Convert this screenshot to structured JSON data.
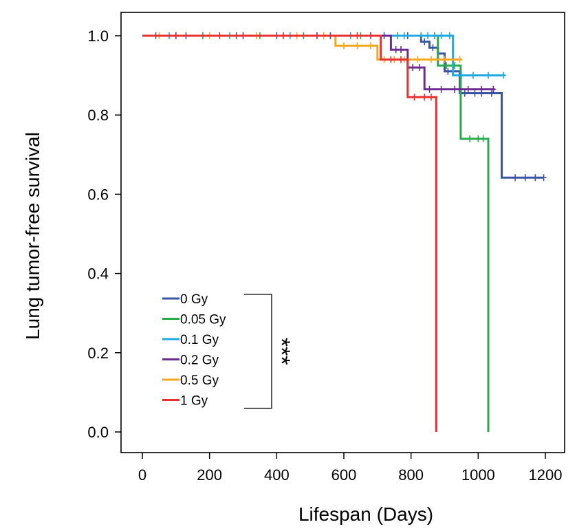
{
  "chart_data": {
    "type": "line",
    "subtype": "kaplan-meier-step",
    "xlabel": "Lifespan (Days)",
    "ylabel": "Lung tumor-free survival",
    "xlim": [
      -50,
      1220
    ],
    "ylim": [
      -0.05,
      1.07
    ],
    "x_ticks": [
      "0",
      "200",
      "400",
      "600",
      "800",
      "1000",
      "1200"
    ],
    "x_tick_values": [
      0,
      200,
      400,
      600,
      800,
      1000,
      1200
    ],
    "y_ticks": [
      "0.0",
      "0.2",
      "0.4",
      "0.6",
      "0.8",
      "1.0"
    ],
    "y_tick_values": [
      0.0,
      0.2,
      0.4,
      0.6,
      0.8,
      1.0
    ],
    "grid": false,
    "legend_position": "lower-left",
    "significance": "***",
    "series": [
      {
        "name": "0 Gy",
        "color": "#3a55a4",
        "steps": [
          [
            0,
            1.0
          ],
          [
            830,
            1.0
          ],
          [
            830,
            0.985
          ],
          [
            855,
            0.985
          ],
          [
            855,
            0.97
          ],
          [
            880,
            0.97
          ],
          [
            880,
            0.955
          ],
          [
            900,
            0.955
          ],
          [
            900,
            0.91
          ],
          [
            945,
            0.91
          ],
          [
            945,
            0.855
          ],
          [
            1070,
            0.855
          ],
          [
            1070,
            0.642
          ],
          [
            1195,
            0.642
          ]
        ],
        "censored": [
          [
            40,
            1.0
          ],
          [
            130,
            1.0
          ],
          [
            280,
            1.0
          ],
          [
            400,
            1.0
          ],
          [
            560,
            1.0
          ],
          [
            720,
            1.0
          ],
          [
            790,
            1.0
          ],
          [
            840,
            0.985
          ],
          [
            865,
            0.97
          ],
          [
            910,
            0.91
          ],
          [
            960,
            0.855
          ],
          [
            990,
            0.855
          ],
          [
            1010,
            0.855
          ],
          [
            1040,
            0.855
          ],
          [
            1110,
            0.642
          ],
          [
            1140,
            0.642
          ],
          [
            1170,
            0.642
          ],
          [
            1195,
            0.642
          ]
        ]
      },
      {
        "name": "0.05 Gy",
        "color": "#2aab4a",
        "steps": [
          [
            0,
            1.0
          ],
          [
            880,
            1.0
          ],
          [
            880,
            0.925
          ],
          [
            948,
            0.925
          ],
          [
            948,
            0.74
          ],
          [
            1030,
            0.74
          ],
          [
            1030,
            0.0
          ]
        ],
        "censored": [
          [
            180,
            1.0
          ],
          [
            350,
            1.0
          ],
          [
            480,
            1.0
          ],
          [
            650,
            1.0
          ],
          [
            760,
            1.0
          ],
          [
            830,
            1.0
          ],
          [
            870,
            1.0
          ],
          [
            905,
            0.925
          ],
          [
            930,
            0.925
          ],
          [
            975,
            0.74
          ],
          [
            1000,
            0.74
          ],
          [
            1015,
            0.74
          ]
        ]
      },
      {
        "name": "0.1 Gy",
        "color": "#1fa9e1",
        "steps": [
          [
            0,
            1.0
          ],
          [
            925,
            1.0
          ],
          [
            925,
            0.9
          ],
          [
            1080,
            0.9
          ]
        ],
        "censored": [
          [
            80,
            1.0
          ],
          [
            260,
            1.0
          ],
          [
            440,
            1.0
          ],
          [
            620,
            1.0
          ],
          [
            780,
            1.0
          ],
          [
            850,
            1.0
          ],
          [
            890,
            1.0
          ],
          [
            915,
            1.0
          ],
          [
            950,
            0.9
          ],
          [
            985,
            0.9
          ],
          [
            1030,
            0.9
          ],
          [
            1075,
            0.9
          ]
        ]
      },
      {
        "name": "0.2 Gy",
        "color": "#6a2d8f",
        "steps": [
          [
            0,
            1.0
          ],
          [
            740,
            1.0
          ],
          [
            740,
            0.965
          ],
          [
            790,
            0.965
          ],
          [
            790,
            0.92
          ],
          [
            840,
            0.92
          ],
          [
            840,
            0.865
          ],
          [
            1050,
            0.865
          ]
        ],
        "censored": [
          [
            100,
            1.0
          ],
          [
            300,
            1.0
          ],
          [
            520,
            1.0
          ],
          [
            680,
            1.0
          ],
          [
            755,
            0.965
          ],
          [
            770,
            0.965
          ],
          [
            805,
            0.92
          ],
          [
            825,
            0.92
          ],
          [
            855,
            0.865
          ],
          [
            890,
            0.865
          ],
          [
            930,
            0.865
          ],
          [
            970,
            0.865
          ],
          [
            1010,
            0.865
          ],
          [
            1045,
            0.865
          ]
        ]
      },
      {
        "name": "0.5 Gy",
        "color": "#f4a81d",
        "steps": [
          [
            0,
            1.0
          ],
          [
            575,
            1.0
          ],
          [
            575,
            0.975
          ],
          [
            700,
            0.975
          ],
          [
            700,
            0.94
          ],
          [
            950,
            0.94
          ]
        ],
        "censored": [
          [
            50,
            1.0
          ],
          [
            200,
            1.0
          ],
          [
            340,
            1.0
          ],
          [
            460,
            1.0
          ],
          [
            540,
            1.0
          ],
          [
            600,
            0.975
          ],
          [
            640,
            0.975
          ],
          [
            680,
            0.975
          ],
          [
            720,
            0.94
          ],
          [
            750,
            0.94
          ],
          [
            780,
            0.94
          ],
          [
            820,
            0.94
          ],
          [
            860,
            0.94
          ],
          [
            900,
            0.94
          ],
          [
            945,
            0.94
          ]
        ]
      },
      {
        "name": "1 Gy",
        "color": "#e8302e",
        "steps": [
          [
            0,
            1.0
          ],
          [
            710,
            1.0
          ],
          [
            710,
            0.94
          ],
          [
            790,
            0.94
          ],
          [
            790,
            0.845
          ],
          [
            875,
            0.845
          ],
          [
            875,
            0.0
          ]
        ],
        "censored": [
          [
            230,
            1.0
          ],
          [
            420,
            1.0
          ],
          [
            640,
            1.0
          ],
          [
            740,
            0.94
          ],
          [
            770,
            0.94
          ],
          [
            810,
            0.845
          ],
          [
            840,
            0.845
          ],
          [
            860,
            0.845
          ]
        ]
      }
    ]
  }
}
